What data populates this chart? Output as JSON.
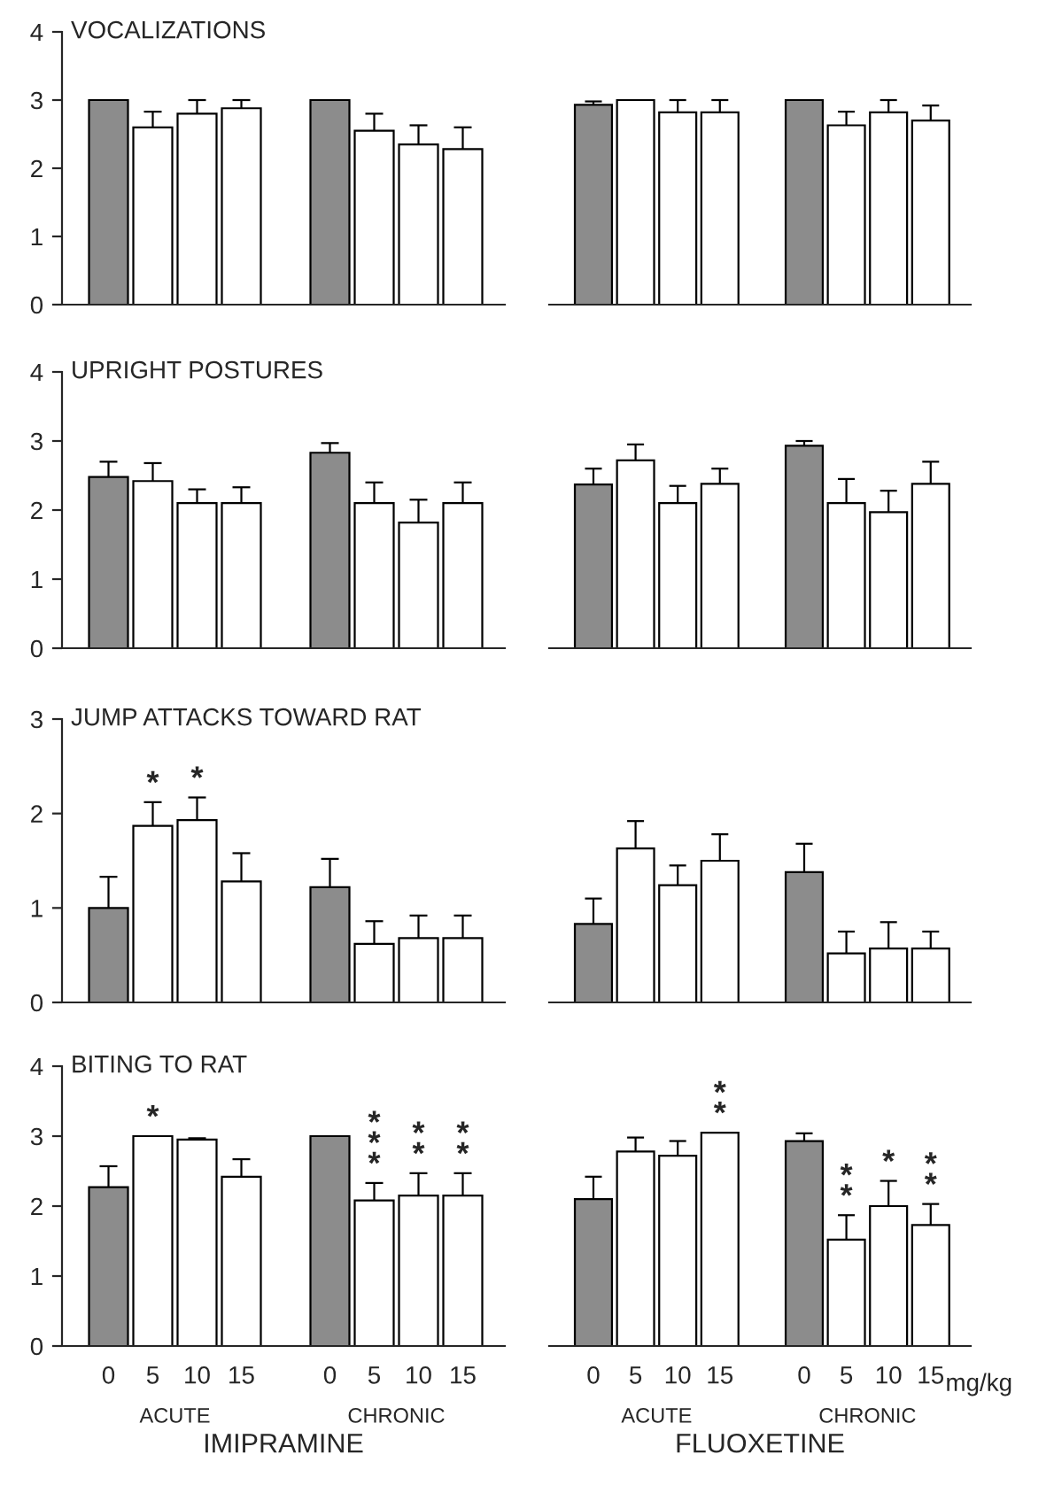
{
  "chart_data": [
    {
      "type": "bar",
      "title": "VOCALIZATIONS",
      "categories": [
        "0",
        "5",
        "10",
        "15",
        null,
        "0",
        "5",
        "10",
        "15"
      ],
      "values": [
        3.0,
        2.6,
        2.8,
        2.88,
        null,
        3.0,
        2.55,
        2.35,
        2.28
      ],
      "colors": [
        "#8c8c8c",
        "#ffffff",
        "#ffffff",
        "#ffffff",
        "#ffffff",
        "#8c8c8c",
        "#ffffff",
        "#ffffff",
        "#ffffff"
      ],
      "errors": [
        null,
        [
          2.6,
          2.83
        ],
        [
          2.8,
          3.0
        ],
        [
          2.88,
          3.0
        ],
        null,
        null,
        [
          2.55,
          2.8
        ],
        [
          2.35,
          2.63
        ],
        [
          2.28,
          2.6
        ]
      ],
      "ylim": [
        0,
        4
      ],
      "yticks": [
        0,
        1,
        2,
        3,
        4
      ],
      "tick_labels": "y"
    },
    {
      "type": "bar",
      "categories": [
        "0",
        "5",
        "10",
        "15",
        null,
        "0",
        "5",
        "10",
        "15"
      ],
      "values": [
        2.93,
        3.0,
        2.82,
        2.82,
        null,
        3.0,
        2.63,
        2.82,
        2.7
      ],
      "colors": [
        "#8c8c8c",
        "#ffffff",
        "#ffffff",
        "#ffffff",
        "#ffffff",
        "#8c8c8c",
        "#ffffff",
        "#ffffff",
        "#ffffff"
      ],
      "errors": [
        [
          2.93,
          2.98
        ],
        null,
        [
          2.82,
          3.0
        ],
        [
          2.82,
          3.0
        ],
        null,
        null,
        [
          2.63,
          2.83
        ],
        [
          2.82,
          3.0
        ],
        [
          2.7,
          2.92
        ]
      ],
      "ylim": [
        0,
        4
      ],
      "tick_labels": false
    },
    {
      "type": "bar",
      "title": "UPRIGHT POSTURES",
      "categories": [
        "0",
        "5",
        "10",
        "15",
        null,
        "0",
        "5",
        "10",
        "15"
      ],
      "values": [
        2.48,
        2.42,
        2.1,
        2.1,
        null,
        2.83,
        2.1,
        1.82,
        2.1
      ],
      "colors": [
        "#8c8c8c",
        "#ffffff",
        "#ffffff",
        "#ffffff",
        "#ffffff",
        "#8c8c8c",
        "#ffffff",
        "#ffffff",
        "#ffffff"
      ],
      "errors": [
        [
          2.48,
          2.7
        ],
        [
          2.42,
          2.68
        ],
        [
          2.1,
          2.3
        ],
        [
          2.1,
          2.33
        ],
        null,
        [
          2.83,
          2.97
        ],
        [
          2.1,
          2.4
        ],
        [
          1.82,
          2.15
        ],
        [
          2.1,
          2.4
        ]
      ],
      "ylim": [
        0,
        4
      ],
      "yticks": [
        0,
        1,
        2,
        3,
        4
      ],
      "tick_labels": "y"
    },
    {
      "type": "bar",
      "categories": [
        "0",
        "5",
        "10",
        "15",
        null,
        "0",
        "5",
        "10",
        "15"
      ],
      "values": [
        2.37,
        2.72,
        2.1,
        2.38,
        null,
        2.93,
        2.1,
        1.97,
        2.38
      ],
      "colors": [
        "#8c8c8c",
        "#ffffff",
        "#ffffff",
        "#ffffff",
        "#ffffff",
        "#8c8c8c",
        "#ffffff",
        "#ffffff",
        "#ffffff"
      ],
      "errors": [
        [
          2.37,
          2.6
        ],
        [
          2.72,
          2.95
        ],
        [
          2.1,
          2.35
        ],
        [
          2.38,
          2.6
        ],
        null,
        [
          2.93,
          3.0
        ],
        [
          2.1,
          2.45
        ],
        [
          1.97,
          2.28
        ],
        [
          2.38,
          2.7
        ]
      ],
      "ylim": [
        0,
        4
      ],
      "tick_labels": false
    },
    {
      "type": "bar",
      "title": "JUMP ATTACKS TOWARD RAT",
      "categories": [
        "0",
        "5",
        "10",
        "15",
        null,
        "0",
        "5",
        "10",
        "15"
      ],
      "values": [
        1.0,
        1.87,
        1.93,
        1.28,
        null,
        1.22,
        0.62,
        0.68,
        0.68
      ],
      "colors": [
        "#8c8c8c",
        "#ffffff",
        "#ffffff",
        "#ffffff",
        "#ffffff",
        "#8c8c8c",
        "#ffffff",
        "#ffffff",
        "#ffffff"
      ],
      "errors": [
        [
          1.0,
          1.33
        ],
        [
          1.87,
          2.12
        ],
        [
          1.93,
          2.17
        ],
        [
          1.28,
          1.58
        ],
        null,
        [
          1.22,
          1.52
        ],
        [
          0.62,
          0.86
        ],
        [
          0.68,
          0.92
        ],
        [
          0.68,
          0.92
        ]
      ],
      "value_labels": [
        null,
        "*",
        "*",
        null,
        null,
        null,
        null,
        null,
        null
      ],
      "ylim": [
        0,
        3
      ],
      "yticks": [
        0,
        1,
        2,
        3
      ],
      "tick_labels": "y"
    },
    {
      "type": "bar",
      "categories": [
        "0",
        "5",
        "10",
        "15",
        null,
        "0",
        "5",
        "10",
        "15"
      ],
      "values": [
        0.83,
        1.63,
        1.24,
        1.5,
        null,
        1.38,
        0.52,
        0.57,
        0.57
      ],
      "colors": [
        "#8c8c8c",
        "#ffffff",
        "#ffffff",
        "#ffffff",
        "#ffffff",
        "#8c8c8c",
        "#ffffff",
        "#ffffff",
        "#ffffff"
      ],
      "errors": [
        [
          0.83,
          1.1
        ],
        [
          1.63,
          1.92
        ],
        [
          1.24,
          1.45
        ],
        [
          1.5,
          1.78
        ],
        null,
        [
          1.38,
          1.68
        ],
        [
          0.52,
          0.75
        ],
        [
          0.57,
          0.85
        ],
        [
          0.57,
          0.75
        ]
      ],
      "ylim": [
        0,
        3
      ],
      "tick_labels": false
    },
    {
      "type": "bar",
      "title": "BITING TO RAT",
      "xlabel": "IMIPRAMINE",
      "categories": [
        "0",
        "5",
        "10",
        "15",
        null,
        "0",
        "5",
        "10",
        "15"
      ],
      "values": [
        2.27,
        3.0,
        2.95,
        2.42,
        null,
        3.0,
        2.08,
        2.15,
        2.15
      ],
      "colors": [
        "#8c8c8c",
        "#ffffff",
        "#ffffff",
        "#ffffff",
        "#ffffff",
        "#8c8c8c",
        "#ffffff",
        "#ffffff",
        "#ffffff"
      ],
      "errors": [
        [
          2.27,
          2.57
        ],
        null,
        [
          2.95,
          2.97
        ],
        [
          2.42,
          2.67
        ],
        null,
        null,
        [
          2.08,
          2.33
        ],
        [
          2.15,
          2.47
        ],
        [
          2.15,
          2.47
        ]
      ],
      "value_labels": [
        null,
        "*",
        null,
        null,
        null,
        null,
        "*\n*\n*",
        "*\n*",
        "*\n*"
      ],
      "ylim": [
        0,
        4
      ],
      "yticks": [
        0,
        1,
        2,
        3,
        4
      ],
      "annotations": [
        "ACUTE",
        "CHRONIC"
      ]
    },
    {
      "type": "bar",
      "xlabel": "FLUOXETINE",
      "categories": [
        "0",
        "5",
        "10",
        "15",
        null,
        "0",
        "5",
        "10",
        "15"
      ],
      "values": [
        2.1,
        2.78,
        2.72,
        3.05,
        null,
        2.93,
        1.52,
        2.0,
        1.73
      ],
      "colors": [
        "#8c8c8c",
        "#ffffff",
        "#ffffff",
        "#ffffff",
        "#ffffff",
        "#8c8c8c",
        "#ffffff",
        "#ffffff",
        "#ffffff"
      ],
      "errors": [
        [
          2.1,
          2.42
        ],
        [
          2.78,
          2.98
        ],
        [
          2.72,
          2.93
        ],
        null,
        null,
        [
          2.93,
          3.04
        ],
        [
          1.52,
          1.87
        ],
        [
          2.0,
          2.36
        ],
        [
          1.73,
          2.03
        ]
      ],
      "value_labels": [
        null,
        null,
        null,
        "*\n*",
        null,
        null,
        "*\n*",
        "*",
        "*\n*"
      ],
      "ylim": [
        0,
        4
      ],
      "tick_labels": "x",
      "annotations": [
        "ACUTE",
        "CHRONIC",
        "mg/kg"
      ]
    }
  ]
}
